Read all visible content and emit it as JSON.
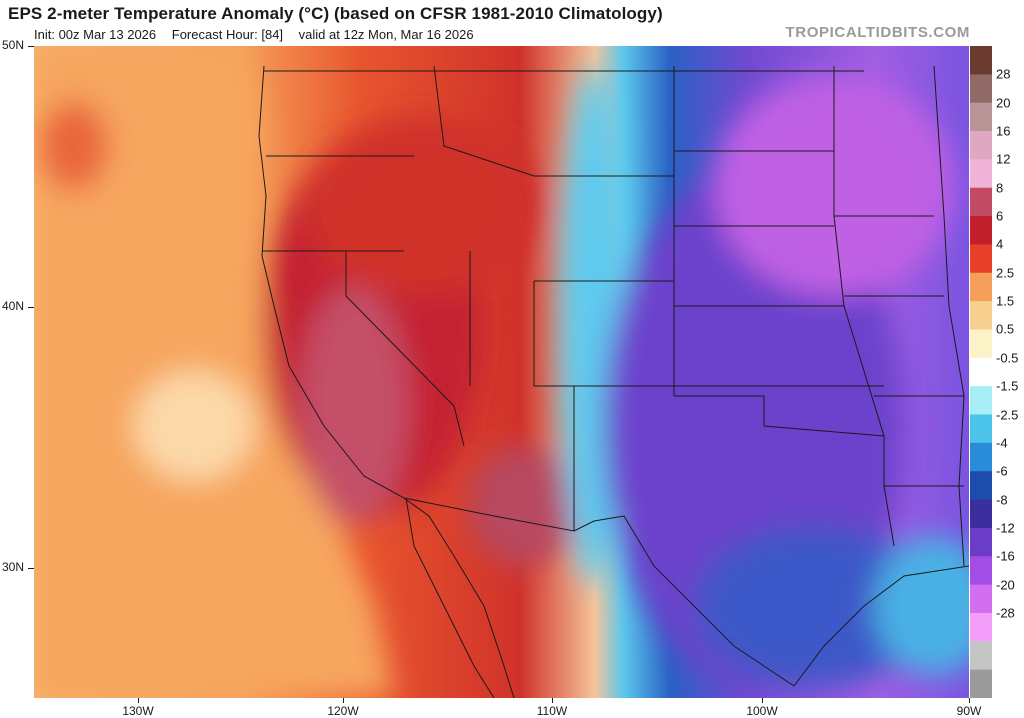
{
  "header": {
    "title": "EPS 2-meter Temperature Anomaly (°C) (based on CFSR 1981-2010 Climatology)",
    "init": "Init: 00z Mar 13 2026",
    "forecast_hour": "Forecast Hour: [84]",
    "valid": "valid at 12z Mon, Mar 16 2026",
    "brand": "TROPICALTIDBITS.COM"
  },
  "map": {
    "region": "Western and Central United States",
    "lat_labels": [
      "50N",
      "40N",
      "30N"
    ],
    "lon_labels": [
      "130W",
      "120W",
      "110W",
      "100W",
      "90W"
    ]
  },
  "legend": {
    "labels": [
      "28",
      "20",
      "16",
      "12",
      "8",
      "6",
      "4",
      "2.5",
      "1.5",
      "0.5",
      "-0.5",
      "-1.5",
      "-2.5",
      "-4",
      "-6",
      "-8",
      "-12",
      "-16",
      "-20",
      "-28"
    ],
    "colors": [
      "#6b3a2e",
      "#8f6a66",
      "#b89496",
      "#e0a8c0",
      "#f0b4d8",
      "#c24a62",
      "#c01f2b",
      "#e8402a",
      "#f5a05a",
      "#f7cf8e",
      "#fbf2c8",
      "#ffffff",
      "#a8eef6",
      "#4cc4ea",
      "#2a8cd8",
      "#1c4cac",
      "#3a2f9c",
      "#6a3cc8",
      "#a24ee4",
      "#d26ef0",
      "#f39ef8",
      "#c5c5c5",
      "#9a9a9a"
    ]
  }
}
